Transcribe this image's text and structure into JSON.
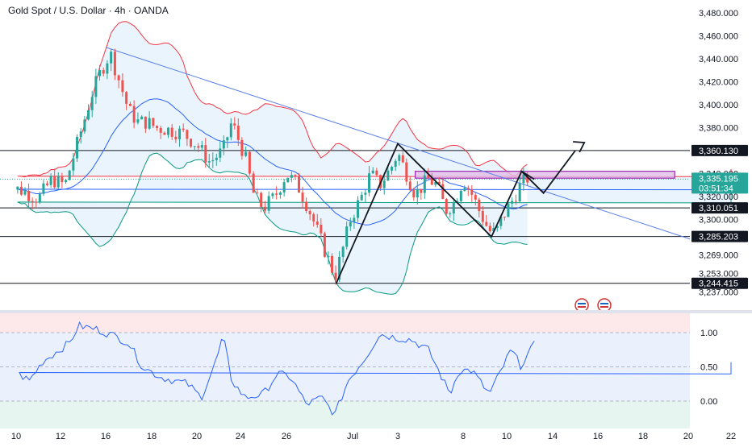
{
  "header": {
    "symbol_title": "Gold Spot / U.S. Dollar · 4h · OANDA"
  },
  "colors": {
    "bull": "#26a69a",
    "bear": "#ef5350",
    "bb_upper": "#f23645",
    "bb_basis": "#2962ff",
    "bb_lower": "#089981",
    "bb_fill": "#e3f0fb",
    "trendline": "#5b7fe8",
    "zigzag": "#131722",
    "zone_fill": "#e1bee7",
    "zone_border": "#9c27b0",
    "rsi_line": "#2962ff",
    "badge_bg": "#131722",
    "current_badge_bg": "#26a69a"
  },
  "chart_data": [
    {
      "type": "candlestick",
      "title": "Gold Spot / U.S. Dollar · 4h · OANDA",
      "ylim": [
        3230,
        3492
      ],
      "y_ticks": [
        "3,480.000",
        "3,460.000",
        "3,440.000",
        "3,420.000",
        "3,400.000",
        "3,380.000",
        "3,340.000",
        "3,320.000",
        "3,300.000",
        "3,269.000",
        "3,253.000",
        "3,237.000"
      ],
      "y_tick_values": [
        3480,
        3460,
        3440,
        3420,
        3400,
        3380,
        3340,
        3320,
        3300,
        3269,
        3253,
        3237
      ],
      "x_tick_labels": [
        "10",
        "12",
        "16",
        "18",
        "20",
        "24",
        "26",
        "Jul",
        "3",
        "8",
        "10",
        "14",
        "16",
        "18",
        "20",
        "22"
      ],
      "support_resistance": [
        {
          "value": 3360.13,
          "label": "3,360.130"
        },
        {
          "value": 3310.051,
          "label": "3,310.051"
        },
        {
          "value": 3285.203,
          "label": "3,285.203"
        },
        {
          "value": 3244.415,
          "label": "3,244.415"
        }
      ],
      "current_price": {
        "value": 3335.195,
        "label": "3,335.195",
        "countdown": "03:51:34"
      },
      "indicators": [
        "Bollinger Bands (upper, basis, lower)"
      ],
      "annotations": [
        "descending trendline",
        "zigzag pattern",
        "resistance zone 3,336–3,342",
        "projected upward path"
      ],
      "grid": false
    },
    {
      "type": "line",
      "name": "oscillator",
      "ylim": [
        -0.2,
        1.2
      ],
      "y_ticks": [
        "1.00",
        "0.50",
        "0.00"
      ],
      "y_tick_values": [
        1.0,
        0.5,
        0.0
      ],
      "grid": false
    }
  ]
}
